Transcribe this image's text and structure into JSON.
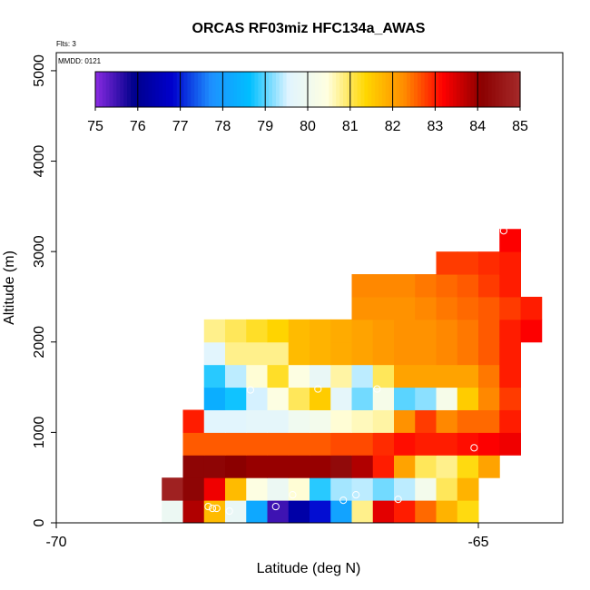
{
  "chart_data": {
    "type": "heatmap",
    "title": "ORCAS RF03miz HFC134a_AWAS",
    "note_flts": "Flts: 3",
    "note_mmdd": "MMDD: 0121",
    "xlabel": "Latitude (deg N)",
    "ylabel": "Altitude (m)",
    "xlim": [
      -70,
      -64
    ],
    "ylim": [
      0,
      5200
    ],
    "x_ticks": [
      "-70",
      "-65"
    ],
    "x_tick_values": [
      -70,
      -65
    ],
    "y_ticks": [
      "0",
      "1000",
      "2000",
      "3000",
      "4000",
      "5000"
    ],
    "y_tick_values": [
      0,
      1000,
      2000,
      3000,
      4000,
      5000
    ],
    "colorbar": {
      "min": 75,
      "max": 85,
      "labels": [
        "75",
        "76",
        "77",
        "78",
        "79",
        "80",
        "81",
        "82",
        "83",
        "84",
        "85"
      ],
      "colors": [
        "#8a2be2",
        "#00008b",
        "#0000cd",
        "#1e90ff",
        "#00bfff",
        "#e0f4ff",
        "#ffffe0",
        "#ffd700",
        "#ff8c00",
        "#ff0000",
        "#8b0000",
        "#a52a2a"
      ]
    },
    "cell": {
      "dlat": 0.25,
      "dalt": 250
    },
    "rows": [
      {
        "alt": 0,
        "lat0": -68.75,
        "values": [
          79.9,
          83.8,
          81.7,
          79.8,
          78.2,
          75.5,
          76.3,
          76.9,
          78.1,
          80.8,
          83.4,
          83.0,
          82.5,
          81.8,
          81.3
        ]
      },
      {
        "alt": 250,
        "lat0": -68.75,
        "values": [
          84.8,
          84.2,
          83.3,
          81.7,
          80.4,
          79.9,
          80.5,
          78.8,
          79.3,
          79.4,
          79.1,
          79.4,
          80.1,
          81.0,
          81.8
        ]
      },
      {
        "alt": 500,
        "lat0": -68.5,
        "values": [
          84.2,
          84.2,
          84.1,
          84.0,
          84.0,
          84.0,
          84.0,
          84.3,
          83.8,
          83.0,
          82.0,
          81.0,
          80.8,
          81.3,
          82.0
        ]
      },
      {
        "alt": 750,
        "lat0": -68.5,
        "values": [
          82.6,
          82.6,
          82.6,
          82.6,
          82.6,
          82.6,
          82.6,
          82.7,
          82.7,
          82.9,
          83.1,
          83.0,
          83.0,
          83.1,
          83.2,
          83.3
        ]
      },
      {
        "alt": 1000,
        "lat0": -68.5,
        "values": [
          83.0,
          79.6,
          79.6,
          79.7,
          79.7,
          80.0,
          80.1,
          80.5,
          80.6,
          80.7,
          82.2,
          82.8,
          82.3,
          82.5,
          82.5,
          83.0
        ]
      },
      {
        "alt": 1250,
        "lat0": -68.25,
        "values": [
          78.3,
          78.7,
          79.5,
          80.4,
          81.0,
          81.5,
          79.7,
          79.1,
          80.2,
          79.0,
          79.2,
          80.2,
          81.5,
          82.3,
          82.8
        ]
      },
      {
        "alt": 1500,
        "lat0": -68.25,
        "values": [
          78.8,
          79.4,
          80.5,
          81.2,
          80.4,
          79.8,
          80.7,
          79.4,
          81.0,
          82.0,
          82.0,
          82.0,
          82.0,
          82.4,
          83.0
        ]
      },
      {
        "alt": 1750,
        "lat0": -68.25,
        "values": [
          79.6,
          80.8,
          80.8,
          80.8,
          81.7,
          81.8,
          81.9,
          82.0,
          82.1,
          82.2,
          82.2,
          82.3,
          82.4,
          82.6,
          83.0
        ]
      },
      {
        "alt": 2000,
        "lat0": -68.25,
        "values": [
          80.8,
          81.0,
          81.2,
          81.4,
          81.7,
          81.8,
          81.9,
          82.0,
          82.1,
          82.2,
          82.2,
          82.3,
          82.4,
          82.6,
          83.0,
          83.2
        ]
      },
      {
        "alt": 2250,
        "lat0": -66.5,
        "values": [
          82.2,
          82.2,
          82.2,
          82.3,
          82.4,
          82.5,
          82.6,
          82.8,
          83.0
        ]
      },
      {
        "alt": 2500,
        "lat0": -66.5,
        "values": [
          82.3,
          82.3,
          82.3,
          82.4,
          82.5,
          82.6,
          82.8,
          83.0
        ]
      },
      {
        "alt": 2750,
        "lat0": -65.5,
        "values": [
          82.8,
          82.8,
          82.9,
          83.0
        ]
      },
      {
        "alt": 3000,
        "lat0": -64.75,
        "values": [
          83.2
        ]
      }
    ],
    "samples": [
      {
        "lat": -69.1,
        "alt": 150
      },
      {
        "lat": -69.12,
        "alt": 300
      },
      {
        "lat": -68.5,
        "alt": 1300
      },
      {
        "lat": -68.4,
        "alt": 1480
      },
      {
        "lat": -68.2,
        "alt": 180
      },
      {
        "lat": -68.15,
        "alt": 160
      },
      {
        "lat": -68.1,
        "alt": 160
      },
      {
        "lat": -67.95,
        "alt": 130
      },
      {
        "lat": -67.7,
        "alt": 1470
      },
      {
        "lat": -67.4,
        "alt": 180
      },
      {
        "lat": -67.2,
        "alt": 310
      },
      {
        "lat": -66.9,
        "alt": 1480
      },
      {
        "lat": -66.6,
        "alt": 250
      },
      {
        "lat": -66.45,
        "alt": 310
      },
      {
        "lat": -66.2,
        "alt": 1480
      },
      {
        "lat": -65.95,
        "alt": 260
      },
      {
        "lat": -65.05,
        "alt": 830
      },
      {
        "lat": -64.7,
        "alt": 3230
      }
    ]
  }
}
